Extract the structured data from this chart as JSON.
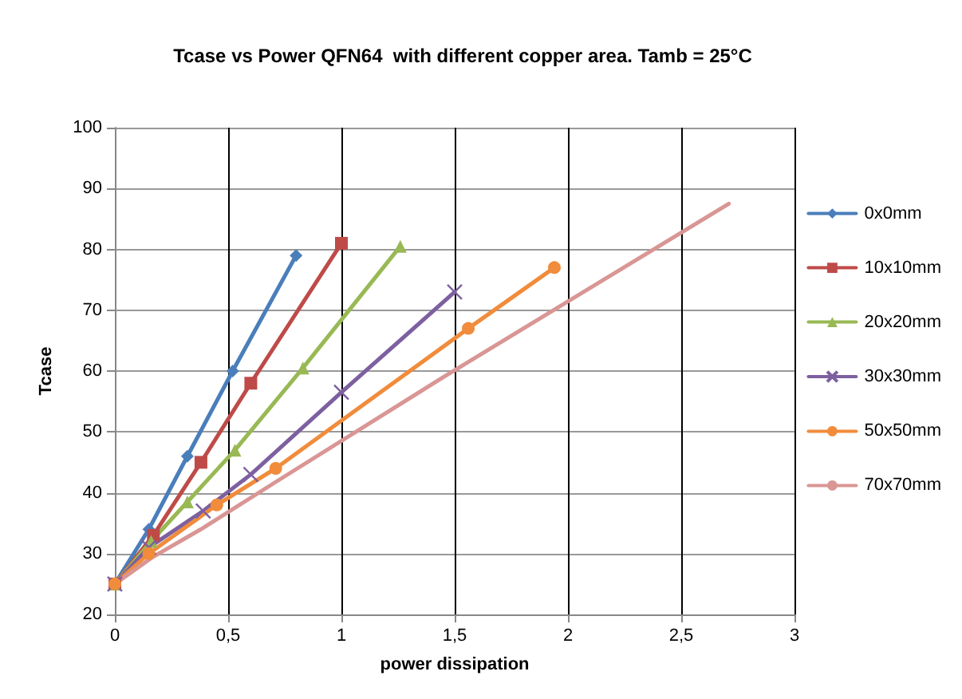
{
  "chart_data": {
    "type": "line",
    "title": "Tcase vs Power QFN64  with different copper area. Tamb = 25°C",
    "xlabel": "power dissipation",
    "ylabel": "Tcase",
    "xlim": [
      0,
      3
    ],
    "xticks": [
      0,
      {
        "value": 0.5,
        "label": "0,5"
      },
      1,
      {
        "value": 1.5,
        "label": "1,5"
      },
      2,
      {
        "value": 2.5,
        "label": "2,5"
      },
      3
    ],
    "ylim": [
      20,
      100
    ],
    "yticks": [
      20,
      30,
      40,
      50,
      60,
      70,
      80,
      90,
      100
    ],
    "grid": true,
    "legend": "right",
    "series": [
      {
        "name": "0x0mm",
        "color": "#4a7ebb",
        "marker": "diamond",
        "x": [
          0,
          0.15,
          0.32,
          0.52,
          0.8
        ],
        "values": [
          25,
          34,
          46,
          60,
          79
        ]
      },
      {
        "name": "10x10mm",
        "color": "#be4b48",
        "marker": "square",
        "x": [
          0,
          0.17,
          0.38,
          0.6,
          1.0
        ],
        "values": [
          25,
          33,
          45,
          58,
          81
        ]
      },
      {
        "name": "20x20mm",
        "color": "#98b954",
        "marker": "triangle",
        "x": [
          0,
          0.16,
          0.32,
          0.53,
          0.83,
          1.26
        ],
        "values": [
          25,
          32,
          38.5,
          47,
          60.5,
          80.5
        ]
      },
      {
        "name": "30x30mm",
        "color": "#7d60a0",
        "marker": "cross",
        "x": [
          0,
          0.15,
          0.39,
          0.6,
          1.0,
          1.5
        ],
        "values": [
          25,
          31,
          37,
          43,
          56.5,
          73
        ]
      },
      {
        "name": "50x50mm",
        "color": "#f08c3c",
        "marker": "circle",
        "x": [
          0,
          0.15,
          0.45,
          0.71,
          1.56,
          1.94
        ],
        "values": [
          25,
          30,
          38,
          44,
          67,
          77
        ]
      },
      {
        "name": "70x70mm",
        "color": "#d99694",
        "marker": "none",
        "x": [
          0,
          0.17,
          0.38,
          0.72,
          1.45,
          2.71
        ],
        "values": [
          25,
          29.5,
          34,
          42,
          59,
          87.5
        ]
      }
    ]
  }
}
